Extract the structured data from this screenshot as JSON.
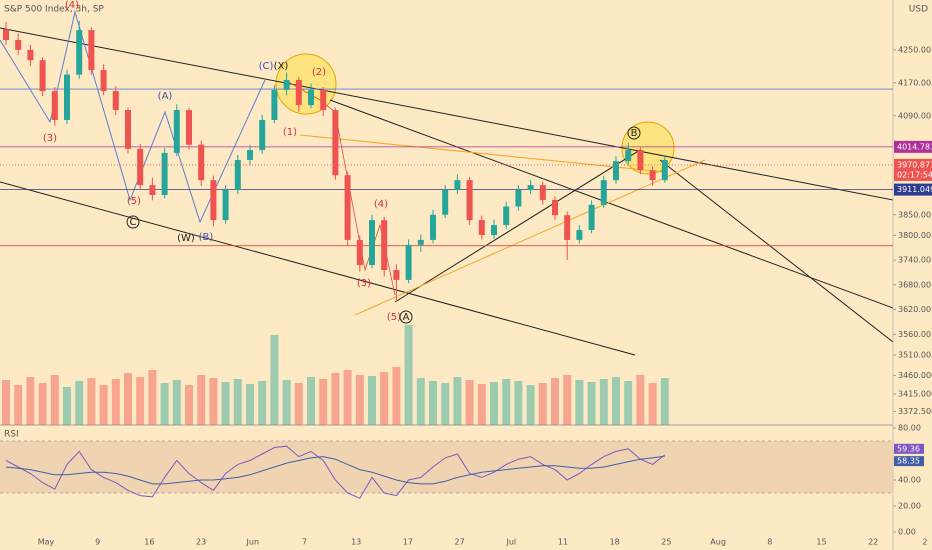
{
  "chart_data": {
    "type": "candlestick",
    "title": "S&P 500 Index, 3h, SP",
    "currency": "USD",
    "up_color": "#26a69a",
    "down_color": "#ef5350",
    "ylim": [
      3340,
      4371
    ],
    "yticks": [
      {
        "value": 4250,
        "label": "4250.00"
      },
      {
        "value": 4170,
        "label": "4170.00"
      },
      {
        "value": 4090,
        "label": "4090.00"
      },
      {
        "value": 3850,
        "label": "3850.00"
      },
      {
        "value": 3800,
        "label": "3800.00"
      },
      {
        "value": 3740,
        "label": "3740.00"
      },
      {
        "value": 3680,
        "label": "3680.00"
      },
      {
        "value": 3620,
        "label": "3620.00"
      },
      {
        "value": 3560,
        "label": "3560.00"
      },
      {
        "value": 3510,
        "label": "3510.00"
      },
      {
        "value": 3460,
        "label": "3460.000"
      },
      {
        "value": 3415,
        "label": "3415.000"
      },
      {
        "value": 3372.5,
        "label": "3372.500"
      }
    ],
    "candles": [
      [
        4300,
        4318,
        4262,
        4274
      ],
      [
        4274,
        4290,
        4238,
        4250
      ],
      [
        4250,
        4262,
        4210,
        4225
      ],
      [
        4225,
        4232,
        4138,
        4150
      ],
      [
        4150,
        4160,
        4066,
        4080
      ],
      [
        4080,
        4202,
        4070,
        4190
      ],
      [
        4190,
        4320,
        4180,
        4298
      ],
      [
        4298,
        4305,
        4190,
        4201
      ],
      [
        4201,
        4215,
        4140,
        4150
      ],
      [
        4150,
        4162,
        4092,
        4104
      ],
      [
        4104,
        4110,
        3998,
        4010
      ],
      [
        4010,
        4022,
        3910,
        3922
      ],
      [
        3922,
        3940,
        3885,
        3898
      ],
      [
        3898,
        4012,
        3890,
        4000
      ],
      [
        4000,
        4118,
        3992,
        4104
      ],
      [
        4104,
        4110,
        4008,
        4020
      ],
      [
        4020,
        4030,
        3920,
        3934
      ],
      [
        3934,
        3945,
        3822,
        3837
      ],
      [
        3837,
        3922,
        3828,
        3910
      ],
      [
        3910,
        3995,
        3900,
        3983
      ],
      [
        3983,
        4020,
        3970,
        4007
      ],
      [
        4007,
        4092,
        3998,
        4080
      ],
      [
        4080,
        4165,
        4072,
        4153
      ],
      [
        4153,
        4195,
        4140,
        4177
      ],
      [
        4177,
        4185,
        4100,
        4116
      ],
      [
        4116,
        4168,
        4108,
        4153
      ],
      [
        4153,
        4160,
        4090,
        4104
      ],
      [
        4104,
        4110,
        3935,
        3946
      ],
      [
        3946,
        3955,
        3775,
        3789
      ],
      [
        3789,
        3800,
        3712,
        3728
      ],
      [
        3728,
        3850,
        3720,
        3837
      ],
      [
        3837,
        3845,
        3700,
        3716
      ],
      [
        3716,
        3730,
        3640,
        3692
      ],
      [
        3692,
        3790,
        3684,
        3777
      ],
      [
        3777,
        3802,
        3760,
        3789
      ],
      [
        3789,
        3862,
        3780,
        3850
      ],
      [
        3850,
        3922,
        3842,
        3910
      ],
      [
        3910,
        3948,
        3900,
        3934
      ],
      [
        3934,
        3942,
        3825,
        3837
      ],
      [
        3837,
        3848,
        3790,
        3801
      ],
      [
        3801,
        3838,
        3792,
        3825
      ],
      [
        3825,
        3882,
        3815,
        3870
      ],
      [
        3870,
        3922,
        3860,
        3910
      ],
      [
        3910,
        3935,
        3900,
        3922
      ],
      [
        3922,
        3930,
        3875,
        3886
      ],
      [
        3886,
        3895,
        3838,
        3849
      ],
      [
        3849,
        3858,
        3740,
        3789
      ],
      [
        3789,
        3825,
        3780,
        3813
      ],
      [
        3813,
        3885,
        3805,
        3874
      ],
      [
        3874,
        3945,
        3866,
        3934
      ],
      [
        3934,
        3992,
        3925,
        3980
      ],
      [
        3980,
        4025,
        3972,
        4007
      ],
      [
        4007,
        4015,
        3948,
        3958
      ],
      [
        3958,
        3968,
        3920,
        3934
      ],
      [
        3934,
        3995,
        3928,
        3983
      ]
    ],
    "volume": [
      45,
      40,
      48,
      42,
      50,
      38,
      44,
      47,
      40,
      46,
      52,
      48,
      55,
      42,
      45,
      40,
      50,
      47,
      43,
      46,
      41,
      44,
      90,
      45,
      42,
      48,
      46,
      52,
      55,
      50,
      49,
      53,
      58,
      100,
      47,
      44,
      42,
      48,
      45,
      41,
      43,
      46,
      44,
      40,
      42,
      47,
      50,
      45,
      43,
      46,
      48,
      44,
      50,
      42,
      47
    ],
    "volume_lim": [
      0,
      100
    ],
    "price_lines": [
      {
        "value": 4155,
        "color": "#5b7fd6"
      },
      {
        "value": 4014.781,
        "color": "#b0309a",
        "tag": true
      },
      {
        "value": 3911.049,
        "color": "#2f3c8f",
        "tag": true
      },
      {
        "value": 3775,
        "color": "#e04a3a"
      }
    ],
    "last_price": 3970.871,
    "countdown": "02:17:54",
    "x_labels": [
      "May",
      "9",
      "16",
      "23",
      "Jun",
      "7",
      "13",
      "17",
      "27",
      "Jul",
      "11",
      "18",
      "25",
      "Aug",
      "8",
      "15",
      "22",
      "2"
    ],
    "annotations": [
      {
        "text": "(4)",
        "color": "#d32f2f"
      },
      {
        "text": "(3)",
        "color": "#d32f2f"
      },
      {
        "text": "(5)",
        "color": "#d32f2f"
      },
      {
        "text": "C",
        "color": "#222222"
      },
      {
        "text": "(A)",
        "color": "#3f51b5"
      },
      {
        "text": "(W)",
        "color": "#222222"
      },
      {
        "text": "(B)",
        "color": "#3f51b5"
      },
      {
        "text": "(C)",
        "color": "#3f51b5"
      },
      {
        "text": "(X)",
        "color": "#222222"
      },
      {
        "text": "(2)",
        "color": "#d32f2f"
      },
      {
        "text": "(1)",
        "color": "#d32f2f"
      },
      {
        "text": "(4)",
        "color": "#d32f2f"
      },
      {
        "text": "(3)",
        "color": "#d32f2f"
      },
      {
        "text": "(5)",
        "color": "#d32f2f"
      },
      {
        "text": "A",
        "color": "#222222"
      },
      {
        "text": "B",
        "color": "#222222"
      }
    ],
    "rsi": {
      "label": "RSI",
      "ylim": [
        0,
        80
      ],
      "yticks": [
        {
          "value": 80,
          "label": "80.00"
        },
        {
          "value": 40,
          "label": "40.00"
        },
        {
          "value": 20,
          "label": "20.00"
        },
        {
          "value": 0,
          "label": "0.00"
        }
      ],
      "band": [
        30,
        70
      ],
      "color": "#7e57c2",
      "ma_color": "#3f5fa8",
      "values": [
        55,
        50,
        45,
        38,
        33,
        52,
        62,
        48,
        42,
        38,
        32,
        28,
        27,
        42,
        55,
        45,
        38,
        32,
        45,
        52,
        55,
        60,
        65,
        66,
        58,
        62,
        55,
        40,
        30,
        26,
        42,
        30,
        28,
        40,
        42,
        50,
        57,
        60,
        45,
        42,
        46,
        52,
        56,
        58,
        52,
        48,
        40,
        45,
        52,
        58,
        62,
        64,
        56,
        52,
        59.36
      ],
      "ma": [
        50,
        49,
        48,
        46,
        44,
        44,
        45,
        46,
        46,
        45,
        43,
        40,
        37,
        37,
        38,
        39,
        40,
        40,
        41,
        42,
        44,
        47,
        50,
        53,
        55,
        57,
        58,
        56,
        52,
        48,
        46,
        43,
        40,
        38,
        37,
        37,
        39,
        42,
        44,
        46,
        47,
        48,
        49,
        50,
        51,
        51,
        50,
        49,
        49,
        50,
        52,
        54,
        56,
        57,
        58.35
      ]
    }
  }
}
